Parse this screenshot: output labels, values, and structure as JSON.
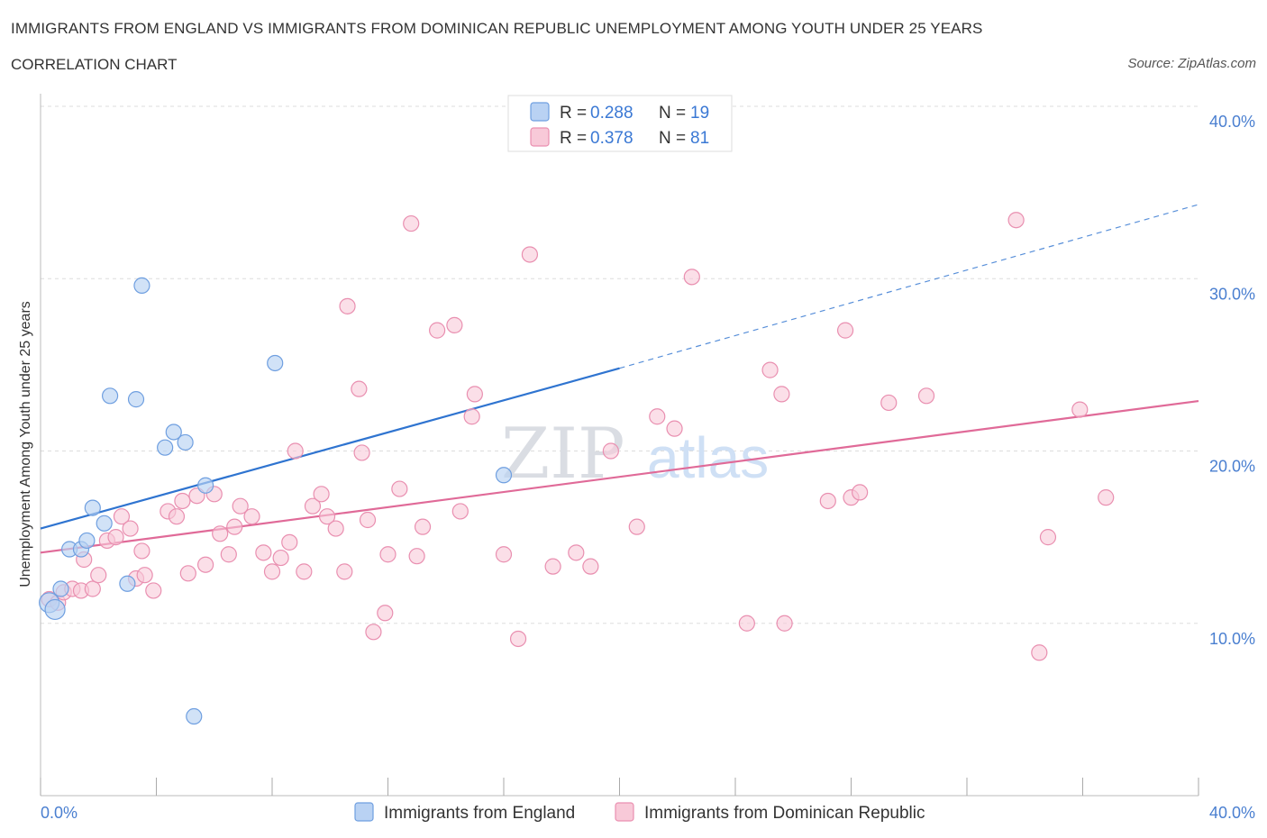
{
  "header": {
    "title": "IMMIGRANTS FROM ENGLAND VS IMMIGRANTS FROM DOMINICAN REPUBLIC UNEMPLOYMENT AMONG YOUTH UNDER 25 YEARS",
    "subtitle": "CORRELATION CHART",
    "source": "Source: ZipAtlas.com"
  },
  "watermark": {
    "zip": "ZIP",
    "atlas": "atlas"
  },
  "legend": {
    "england": {
      "r_label": "R = ",
      "r_value": "0.288",
      "n_label": "N = ",
      "n_value": "19"
    },
    "dominican": {
      "r_label": "R = ",
      "r_value": "0.378",
      "n_label": "N = ",
      "n_value": "81"
    }
  },
  "colors": {
    "england_fill": "#b9d2f3",
    "england_stroke": "#6f9fe0",
    "england_line": "#2f74d0",
    "dominican_fill": "#f8c9d8",
    "dominican_stroke": "#e98fb0",
    "dominican_line": "#e06a98",
    "grid": "#dddddd",
    "tick_label": "#4a7fd0"
  },
  "chart_data": {
    "type": "scatter",
    "title": "IMMIGRANTS FROM ENGLAND VS IMMIGRANTS FROM DOMINICAN REPUBLIC UNEMPLOYMENT AMONG YOUTH UNDER 25 YEARS",
    "xlabel": "",
    "ylabel": "Unemployment Among Youth under 25 years",
    "xlim": [
      0,
      40
    ],
    "ylim": [
      0,
      40
    ],
    "x_tick_labels": [
      "0.0%",
      "40.0%"
    ],
    "y_tick_values": [
      10,
      20,
      30,
      40
    ],
    "y_tick_labels": [
      "10.0%",
      "20.0%",
      "30.0%",
      "40.0%"
    ],
    "grid": true,
    "legend_position": "top-center",
    "series": [
      {
        "name": "Immigrants from England",
        "R": 0.288,
        "N": 19,
        "points": [
          [
            0.3,
            11.2
          ],
          [
            0.5,
            10.8
          ],
          [
            0.7,
            12.0
          ],
          [
            1.0,
            14.3
          ],
          [
            1.4,
            14.3
          ],
          [
            1.6,
            14.8
          ],
          [
            1.8,
            16.7
          ],
          [
            2.2,
            15.8
          ],
          [
            2.4,
            23.2
          ],
          [
            3.0,
            12.3
          ],
          [
            3.3,
            23.0
          ],
          [
            3.5,
            29.6
          ],
          [
            4.3,
            20.2
          ],
          [
            4.6,
            21.1
          ],
          [
            5.0,
            20.5
          ],
          [
            5.3,
            4.6
          ],
          [
            5.7,
            18.0
          ],
          [
            8.1,
            25.1
          ],
          [
            16.0,
            18.6
          ]
        ],
        "trend": {
          "x_start": 0,
          "y_start": 15.5,
          "x_solid_end": 20,
          "y_solid_end": 24.8,
          "x_end": 40,
          "y_end": 34.3
        }
      },
      {
        "name": "Immigrants from Dominican Republic",
        "R": 0.378,
        "N": 81,
        "points": [
          [
            0.3,
            11.4
          ],
          [
            0.6,
            11.2
          ],
          [
            0.8,
            11.8
          ],
          [
            1.1,
            12.0
          ],
          [
            1.4,
            11.9
          ],
          [
            1.5,
            13.7
          ],
          [
            1.8,
            12.0
          ],
          [
            2.0,
            12.8
          ],
          [
            2.3,
            14.8
          ],
          [
            2.6,
            15.0
          ],
          [
            2.8,
            16.2
          ],
          [
            3.1,
            15.5
          ],
          [
            3.3,
            12.6
          ],
          [
            3.5,
            14.2
          ],
          [
            3.6,
            12.8
          ],
          [
            3.9,
            11.9
          ],
          [
            4.4,
            16.5
          ],
          [
            4.7,
            16.2
          ],
          [
            4.9,
            17.1
          ],
          [
            5.1,
            12.9
          ],
          [
            5.4,
            17.4
          ],
          [
            5.7,
            13.4
          ],
          [
            6.0,
            17.5
          ],
          [
            6.2,
            15.2
          ],
          [
            6.5,
            14.0
          ],
          [
            6.7,
            15.6
          ],
          [
            6.9,
            16.8
          ],
          [
            7.3,
            16.2
          ],
          [
            7.7,
            14.1
          ],
          [
            8.0,
            13.0
          ],
          [
            8.3,
            13.8
          ],
          [
            8.6,
            14.7
          ],
          [
            8.8,
            20.0
          ],
          [
            9.1,
            13.0
          ],
          [
            9.4,
            16.8
          ],
          [
            9.7,
            17.5
          ],
          [
            9.9,
            16.2
          ],
          [
            10.2,
            15.5
          ],
          [
            10.5,
            13.0
          ],
          [
            10.6,
            28.4
          ],
          [
            11.0,
            23.6
          ],
          [
            11.1,
            19.9
          ],
          [
            11.3,
            16.0
          ],
          [
            11.5,
            9.5
          ],
          [
            11.9,
            10.6
          ],
          [
            12.0,
            14.0
          ],
          [
            12.4,
            17.8
          ],
          [
            12.8,
            33.2
          ],
          [
            13.0,
            13.9
          ],
          [
            13.2,
            15.6
          ],
          [
            13.7,
            27.0
          ],
          [
            14.3,
            27.3
          ],
          [
            14.5,
            16.5
          ],
          [
            14.9,
            22.0
          ],
          [
            15.0,
            23.3
          ],
          [
            16.0,
            14.0
          ],
          [
            16.5,
            9.1
          ],
          [
            16.9,
            31.4
          ],
          [
            17.7,
            13.3
          ],
          [
            18.5,
            14.1
          ],
          [
            19.0,
            13.3
          ],
          [
            19.7,
            20.0
          ],
          [
            20.6,
            15.6
          ],
          [
            21.3,
            22.0
          ],
          [
            21.9,
            21.3
          ],
          [
            22.5,
            30.1
          ],
          [
            24.4,
            10.0
          ],
          [
            25.2,
            24.7
          ],
          [
            25.6,
            23.3
          ],
          [
            25.7,
            10.0
          ],
          [
            27.2,
            17.1
          ],
          [
            27.8,
            27.0
          ],
          [
            28.0,
            17.3
          ],
          [
            28.3,
            17.6
          ],
          [
            29.3,
            22.8
          ],
          [
            30.6,
            23.2
          ],
          [
            33.7,
            33.4
          ],
          [
            34.8,
            15.0
          ],
          [
            34.5,
            8.3
          ],
          [
            35.9,
            22.4
          ],
          [
            36.8,
            17.3
          ]
        ],
        "trend": {
          "x_start": 0,
          "y_start": 14.1,
          "x_end": 40,
          "y_end": 22.9
        }
      }
    ]
  },
  "bottom_legend": {
    "england_label": "Immigrants from England",
    "dominican_label": "Immigrants from Dominican Republic"
  }
}
